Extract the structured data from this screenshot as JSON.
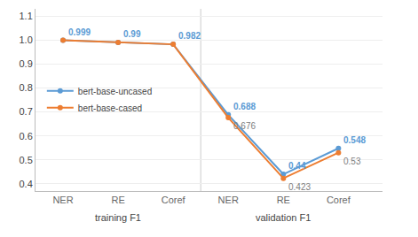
{
  "chart_data": {
    "type": "line",
    "categories": [
      "NER",
      "RE",
      "Coref",
      "NER",
      "RE",
      "Coref"
    ],
    "group_labels": [
      "training F1",
      "validation F1"
    ],
    "series": [
      {
        "name": "bert-base-uncased",
        "color": "#5B9BD5",
        "marker": "circle",
        "data_labels": true,
        "values": [
          0.999,
          0.99,
          0.982,
          0.688,
          0.44,
          0.548
        ]
      },
      {
        "name": "bert-base-cased",
        "color": "#ED7D31",
        "marker": "circle",
        "data_labels": true,
        "values": [
          0.999,
          0.99,
          0.982,
          0.676,
          0.423,
          0.53
        ],
        "value_labels": [
          null,
          null,
          null,
          "0.676",
          "0.423",
          "0.53"
        ]
      }
    ],
    "ylim": [
      0.37,
      1.13
    ],
    "yticks": [
      0.4,
      0.5,
      0.6,
      0.7,
      0.8,
      0.9,
      {
        "value": 1.0,
        "label": "1.0"
      },
      1.1
    ],
    "grid": true,
    "legend": "center left"
  }
}
